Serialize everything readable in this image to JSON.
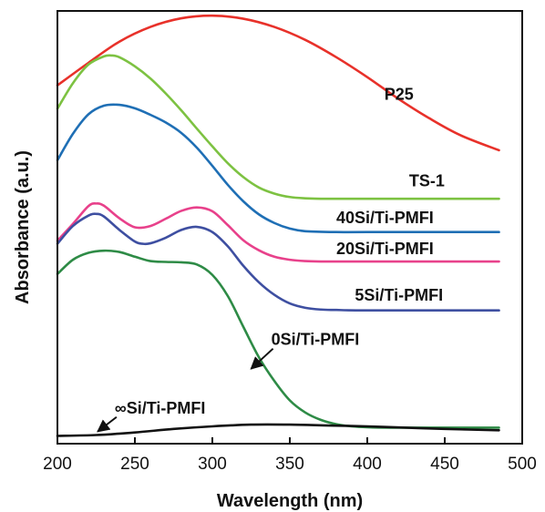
{
  "chart_data": {
    "type": "line",
    "title": "",
    "xlabel": "Wavelength (nm)",
    "ylabel": "Absorbance (a.u.)",
    "xlim": [
      200,
      500
    ],
    "ylim": [
      0,
      1
    ],
    "x_ticks": [
      200,
      250,
      300,
      350,
      400,
      450,
      500
    ],
    "y_ticks": [],
    "grid": false,
    "legend": "none",
    "series": [
      {
        "name": "P25",
        "color": "#e8312a",
        "x": [
          200,
          220,
          240,
          260,
          280,
          300,
          320,
          340,
          360,
          380,
          400,
          420,
          440,
          460,
          485
        ],
        "y": [
          0.828,
          0.88,
          0.929,
          0.963,
          0.983,
          0.989,
          0.982,
          0.963,
          0.933,
          0.893,
          0.847,
          0.797,
          0.752,
          0.713,
          0.678
        ]
      },
      {
        "name": "TS-1",
        "color": "#7dc242",
        "x": [
          200,
          210,
          220,
          230,
          235,
          240,
          250,
          260,
          270,
          280,
          290,
          300,
          310,
          320,
          330,
          340,
          350,
          360,
          370,
          380,
          400,
          485
        ],
        "y": [
          0.774,
          0.833,
          0.876,
          0.895,
          0.897,
          0.893,
          0.872,
          0.844,
          0.809,
          0.77,
          0.728,
          0.687,
          0.648,
          0.616,
          0.592,
          0.578,
          0.57,
          0.567,
          0.566,
          0.566,
          0.566,
          0.566
        ]
      },
      {
        "name": "40Si/Ti-PMFI",
        "color": "#1f6fb5",
        "x": [
          200,
          210,
          220,
          230,
          240,
          250,
          260,
          270,
          280,
          290,
          300,
          310,
          320,
          330,
          340,
          350,
          360,
          380,
          400,
          485
        ],
        "y": [
          0.655,
          0.716,
          0.761,
          0.781,
          0.783,
          0.775,
          0.76,
          0.742,
          0.718,
          0.684,
          0.642,
          0.598,
          0.56,
          0.53,
          0.51,
          0.497,
          0.491,
          0.489,
          0.489,
          0.489
        ]
      },
      {
        "name": "20Si/Ti-PMFI",
        "color": "#e8418b",
        "x": [
          200,
          210,
          220,
          225,
          230,
          240,
          250,
          260,
          270,
          280,
          290,
          300,
          310,
          320,
          330,
          340,
          350,
          360,
          370,
          380,
          400,
          485
        ],
        "y": [
          0.469,
          0.508,
          0.549,
          0.555,
          0.55,
          0.521,
          0.5,
          0.503,
          0.52,
          0.538,
          0.546,
          0.537,
          0.505,
          0.47,
          0.447,
          0.432,
          0.425,
          0.422,
          0.421,
          0.421,
          0.421,
          0.421
        ]
      },
      {
        "name": "5Si/Ti-PMFI",
        "color": "#3e4fa1",
        "x": [
          200,
          210,
          220,
          225,
          230,
          240,
          250,
          255,
          260,
          270,
          280,
          290,
          300,
          310,
          320,
          330,
          340,
          350,
          360,
          370,
          380,
          400,
          485
        ],
        "y": [
          0.462,
          0.503,
          0.527,
          0.531,
          0.525,
          0.494,
          0.467,
          0.462,
          0.463,
          0.476,
          0.494,
          0.501,
          0.489,
          0.456,
          0.411,
          0.373,
          0.344,
          0.324,
          0.314,
          0.31,
          0.309,
          0.308,
          0.308
        ]
      },
      {
        "name": "0Si/Ti-PMFI",
        "color": "#2e8b46",
        "x": [
          200,
          210,
          220,
          230,
          240,
          250,
          260,
          270,
          280,
          290,
          300,
          310,
          320,
          330,
          340,
          350,
          360,
          370,
          380,
          390,
          400,
          420,
          485
        ],
        "y": [
          0.392,
          0.425,
          0.441,
          0.446,
          0.443,
          0.432,
          0.422,
          0.42,
          0.419,
          0.414,
          0.39,
          0.341,
          0.27,
          0.2,
          0.145,
          0.1,
          0.072,
          0.055,
          0.045,
          0.04,
          0.038,
          0.037,
          0.037
        ]
      },
      {
        "name": "∞Si/Ti-PMFI",
        "color": "#111111",
        "x": [
          200,
          225,
          250,
          275,
          300,
          325,
          350,
          375,
          400,
          425,
          450,
          485
        ],
        "y": [
          0.018,
          0.02,
          0.026,
          0.034,
          0.04,
          0.044,
          0.044,
          0.042,
          0.04,
          0.037,
          0.034,
          0.031
        ]
      }
    ],
    "annotations": [
      {
        "text": "P25",
        "x": 411,
        "y": 0.795
      },
      {
        "text": "TS-1",
        "x": 427,
        "y": 0.595
      },
      {
        "text": "40Si/Ti-PMFI",
        "x": 380,
        "y": 0.509
      },
      {
        "text": "20Si/Ti-PMFI",
        "x": 380,
        "y": 0.438
      },
      {
        "text": "5Si/Ti-PMFI",
        "x": 392,
        "y": 0.331
      },
      {
        "text": "0Si/Ti-PMFI",
        "x": 338,
        "y": 0.228,
        "arrow_to": {
          "x": 325,
          "y": 0.173
        }
      },
      {
        "text": "∞Si/Ti-PMFI",
        "x": 237,
        "y": 0.07,
        "arrow_to": {
          "x": 226,
          "y": 0.028
        }
      }
    ]
  }
}
